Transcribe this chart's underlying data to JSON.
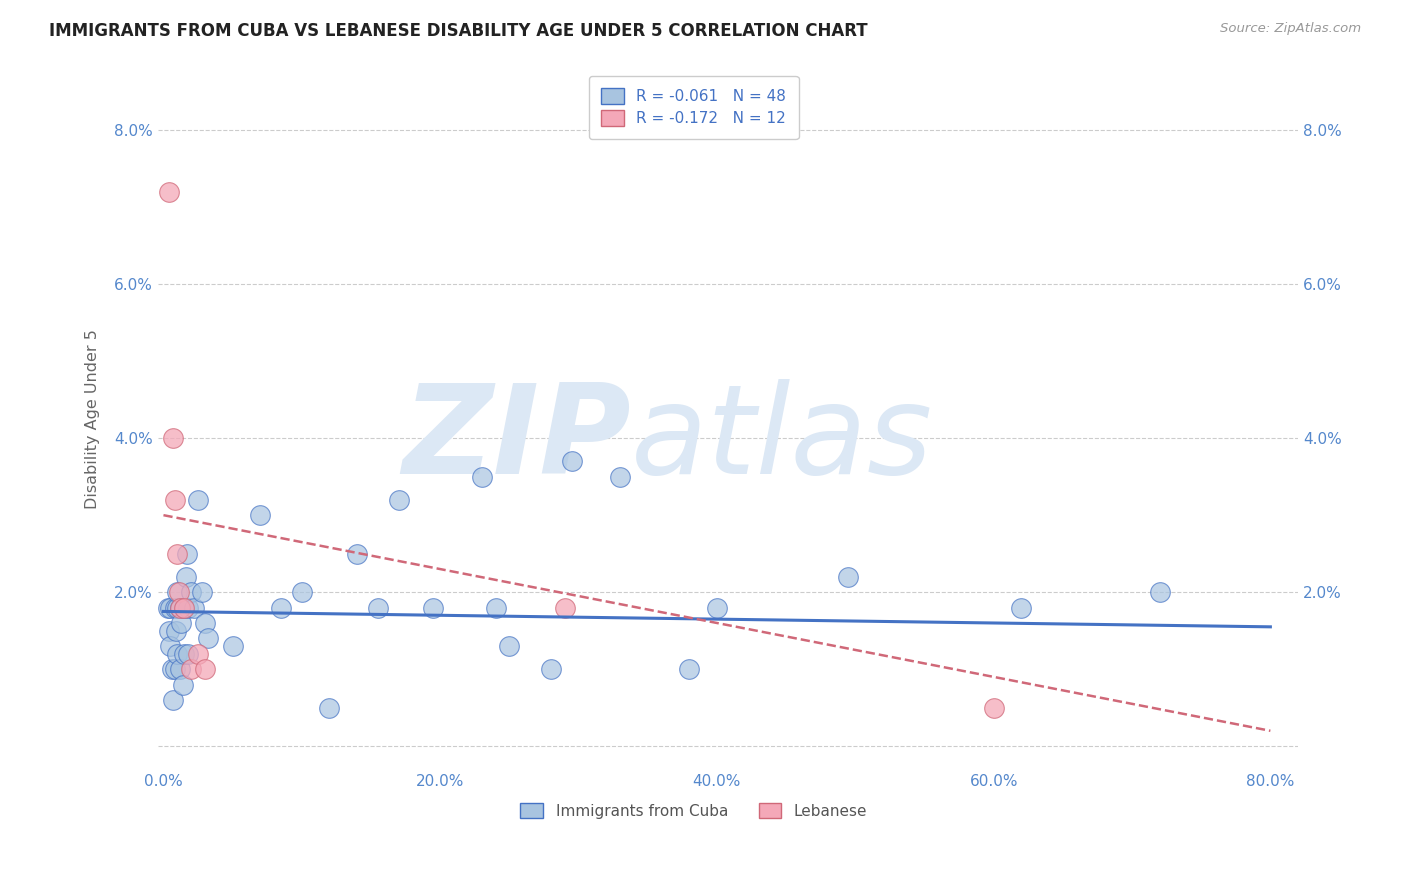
{
  "title": "IMMIGRANTS FROM CUBA VS LEBANESE DISABILITY AGE UNDER 5 CORRELATION CHART",
  "source": "Source: ZipAtlas.com",
  "ylabel": "Disability Age Under 5",
  "legend_labels": [
    "Immigrants from Cuba",
    "Lebanese"
  ],
  "r_cuba": -0.061,
  "n_cuba": 48,
  "r_lebanese": -0.172,
  "n_lebanese": 12,
  "xlim": [
    -0.004,
    0.82
  ],
  "ylim": [
    -0.003,
    0.088
  ],
  "xticks": [
    0.0,
    0.2,
    0.4,
    0.6,
    0.8
  ],
  "xtick_labels": [
    "0.0%",
    "20.0%",
    "40.0%",
    "60.0%",
    "80.0%"
  ],
  "yticks": [
    0.0,
    0.02,
    0.04,
    0.06,
    0.08
  ],
  "ytick_labels": [
    "",
    "2.0%",
    "4.0%",
    "6.0%",
    "8.0%"
  ],
  "color_cuba": "#a8c4e0",
  "color_lebanese": "#f4a8b8",
  "color_line_cuba": "#4472c4",
  "color_line_lebanese": "#d06878",
  "background_color": "#ffffff",
  "watermark_color": "#dce8f5",
  "cuba_x": [
    0.003,
    0.004,
    0.005,
    0.005,
    0.006,
    0.007,
    0.008,
    0.008,
    0.009,
    0.01,
    0.01,
    0.01,
    0.012,
    0.012,
    0.013,
    0.014,
    0.015,
    0.015,
    0.016,
    0.017,
    0.018,
    0.018,
    0.02,
    0.022,
    0.025,
    0.028,
    0.03,
    0.032,
    0.05,
    0.07,
    0.085,
    0.1,
    0.12,
    0.14,
    0.155,
    0.17,
    0.195,
    0.23,
    0.24,
    0.25,
    0.28,
    0.295,
    0.33,
    0.38,
    0.4,
    0.495,
    0.62,
    0.72
  ],
  "cuba_y": [
    0.018,
    0.015,
    0.013,
    0.018,
    0.01,
    0.006,
    0.018,
    0.01,
    0.015,
    0.018,
    0.012,
    0.02,
    0.018,
    0.01,
    0.016,
    0.008,
    0.018,
    0.012,
    0.022,
    0.025,
    0.018,
    0.012,
    0.02,
    0.018,
    0.032,
    0.02,
    0.016,
    0.014,
    0.013,
    0.03,
    0.018,
    0.02,
    0.005,
    0.025,
    0.018,
    0.032,
    0.018,
    0.035,
    0.018,
    0.013,
    0.01,
    0.037,
    0.035,
    0.01,
    0.018,
    0.022,
    0.018,
    0.02
  ],
  "lebanese_x": [
    0.004,
    0.007,
    0.008,
    0.01,
    0.011,
    0.012,
    0.015,
    0.02,
    0.025,
    0.03,
    0.29,
    0.6
  ],
  "lebanese_y": [
    0.072,
    0.04,
    0.032,
    0.025,
    0.02,
    0.018,
    0.018,
    0.01,
    0.012,
    0.01,
    0.018,
    0.005
  ],
  "cuba_trend_x": [
    0.0,
    0.8
  ],
  "cuba_trend_y": [
    0.0175,
    0.0155
  ],
  "leb_trend_x": [
    0.0,
    0.8
  ],
  "leb_trend_y": [
    0.03,
    0.002
  ]
}
